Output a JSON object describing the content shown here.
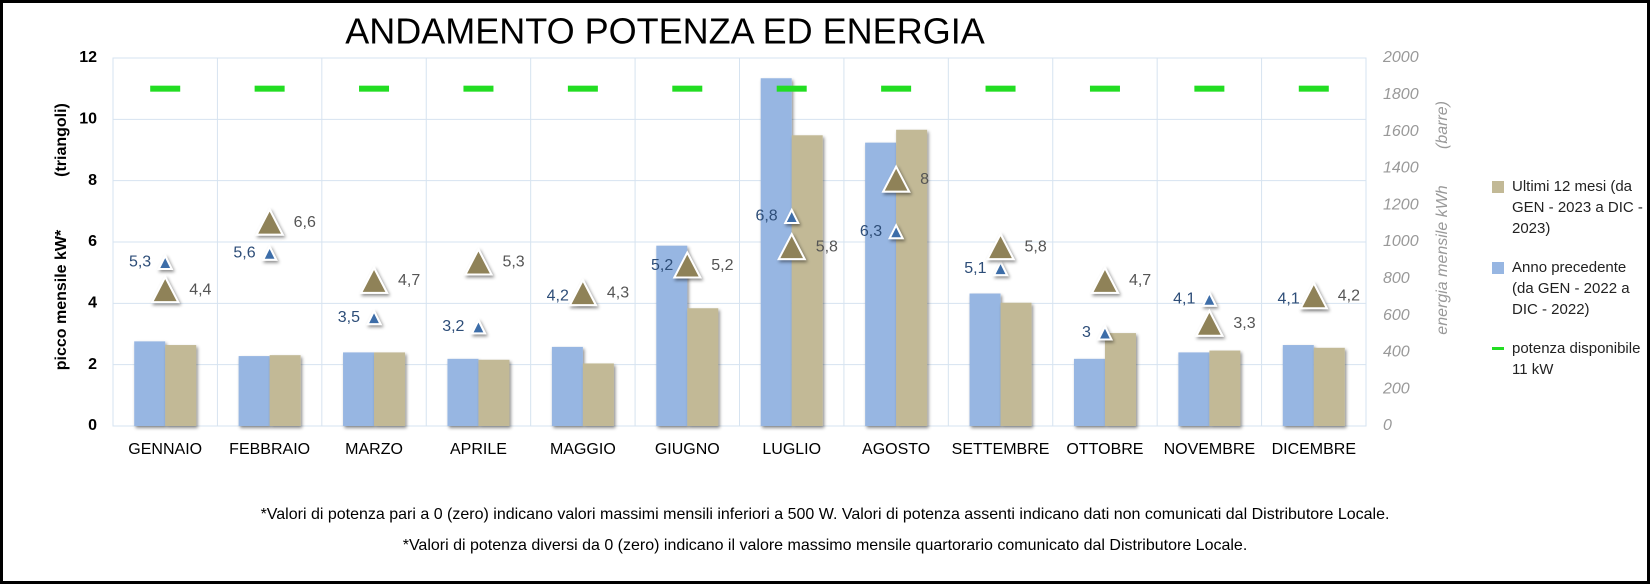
{
  "chart_data": {
    "type": "bar",
    "title": "ANDAMENTO POTENZA ED ENERGIA",
    "y_label": "picco mensile kW*",
    "y_label_note": "(triangoli)",
    "y2_label": "energia mensile kWh",
    "y2_label_note": "(barre)",
    "categories": [
      "GENNAIO",
      "FEBBRAIO",
      "MARZO",
      "APRILE",
      "MAGGIO",
      "GIUGNO",
      "LUGLIO",
      "AGOSTO",
      "SETTEMBRE",
      "OTTOBRE",
      "NOVEMBRE",
      "DICEMBRE"
    ],
    "ylim": [
      0,
      12
    ],
    "yticks": [
      0,
      2,
      4,
      6,
      8,
      10,
      12
    ],
    "y2lim": [
      0,
      2000
    ],
    "y2ticks": [
      0,
      200,
      400,
      600,
      800,
      1000,
      1200,
      1400,
      1600,
      1800,
      2000
    ],
    "grid": true,
    "legend": "right",
    "series": [
      {
        "name": "Ultimi 12 mesi (da GEN - 2023 a DIC - 2023)",
        "type": "bar",
        "axis": "y2",
        "color": "#c2b996",
        "values": [
          440,
          385,
          400,
          360,
          340,
          640,
          1580,
          1610,
          670,
          505,
          410,
          425
        ]
      },
      {
        "name": "Anno precedente (da GEN - 2022 a DIC - 2022)",
        "type": "bar",
        "axis": "y2",
        "color": "#97b6e2",
        "values": [
          460,
          380,
          400,
          365,
          430,
          980,
          1890,
          1540,
          720,
          365,
          400,
          440
        ]
      },
      {
        "name": "potenza disponibile 11 kW",
        "type": "dash",
        "color": "#22dd22",
        "values": [
          11,
          11,
          11,
          11,
          11,
          11,
          11,
          11,
          11,
          11,
          11,
          11
        ]
      },
      {
        "type": "triangle-small",
        "color": "#3c6da8",
        "label_color": "#2d4d78",
        "values": [
          5.3,
          5.6,
          3.5,
          3.2,
          4.2,
          5.2,
          6.8,
          6.3,
          5.1,
          3,
          4.1,
          4.1
        ],
        "value_labels": [
          "5,3",
          "5,6",
          "3,5",
          "3,2",
          "4,2",
          "5,2",
          "6,8",
          "6,3",
          "5,1",
          "3",
          "4,1",
          "4,1"
        ]
      },
      {
        "type": "triangle-large",
        "color": "#8f8259",
        "label_color": "#555555",
        "values": [
          4.4,
          6.6,
          4.7,
          5.3,
          4.3,
          5.2,
          5.8,
          8,
          5.8,
          4.7,
          3.3,
          4.2
        ],
        "value_labels": [
          "4,4",
          "6,6",
          "4,7",
          "5,3",
          "4,3",
          "5,2",
          "5,8",
          "8",
          "5,8",
          "4,7",
          "3,3",
          "4,2"
        ]
      }
    ],
    "footnotes": [
      "*Valori di potenza pari a 0 (zero) indicano valori massimi mensili inferiori a 500 W. Valori di potenza assenti indicano dati non comunicati dal Distributore Locale.",
      "*Valori di potenza diversi da 0 (zero) indicano il valore massimo mensile quartorario comunicato dal Distributore Locale."
    ]
  }
}
